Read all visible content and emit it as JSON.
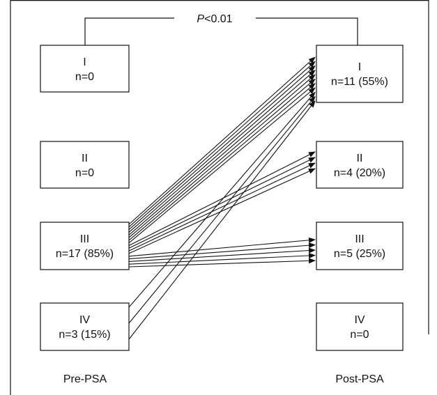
{
  "significance": {
    "p_symbol": "P",
    "p_rest": "<0.01"
  },
  "columns": {
    "pre": "Pre-PSA",
    "post": "Post-PSA"
  },
  "pre": [
    {
      "class": "I",
      "count": "n=0"
    },
    {
      "class": "II",
      "count": "n=0"
    },
    {
      "class": "III",
      "count": "n=17 (85%)"
    },
    {
      "class": "IV",
      "count": "n=3 (15%)"
    }
  ],
  "post": [
    {
      "class": "I",
      "count": "n=11 (55%)"
    },
    {
      "class": "II",
      "count": "n=4 (20%)"
    },
    {
      "class": "III",
      "count": "n=5 (25%)"
    },
    {
      "class": "IV",
      "count": "n=0"
    }
  ],
  "transitions": [
    {
      "from": "III",
      "to": "I",
      "patients": 8
    },
    {
      "from": "III",
      "to": "II",
      "patients": 4
    },
    {
      "from": "III",
      "to": "III",
      "patients": 5
    },
    {
      "from": "IV",
      "to": "I",
      "patients": 3
    }
  ],
  "colors": {
    "line": "#111111",
    "background": "#ffffff"
  }
}
